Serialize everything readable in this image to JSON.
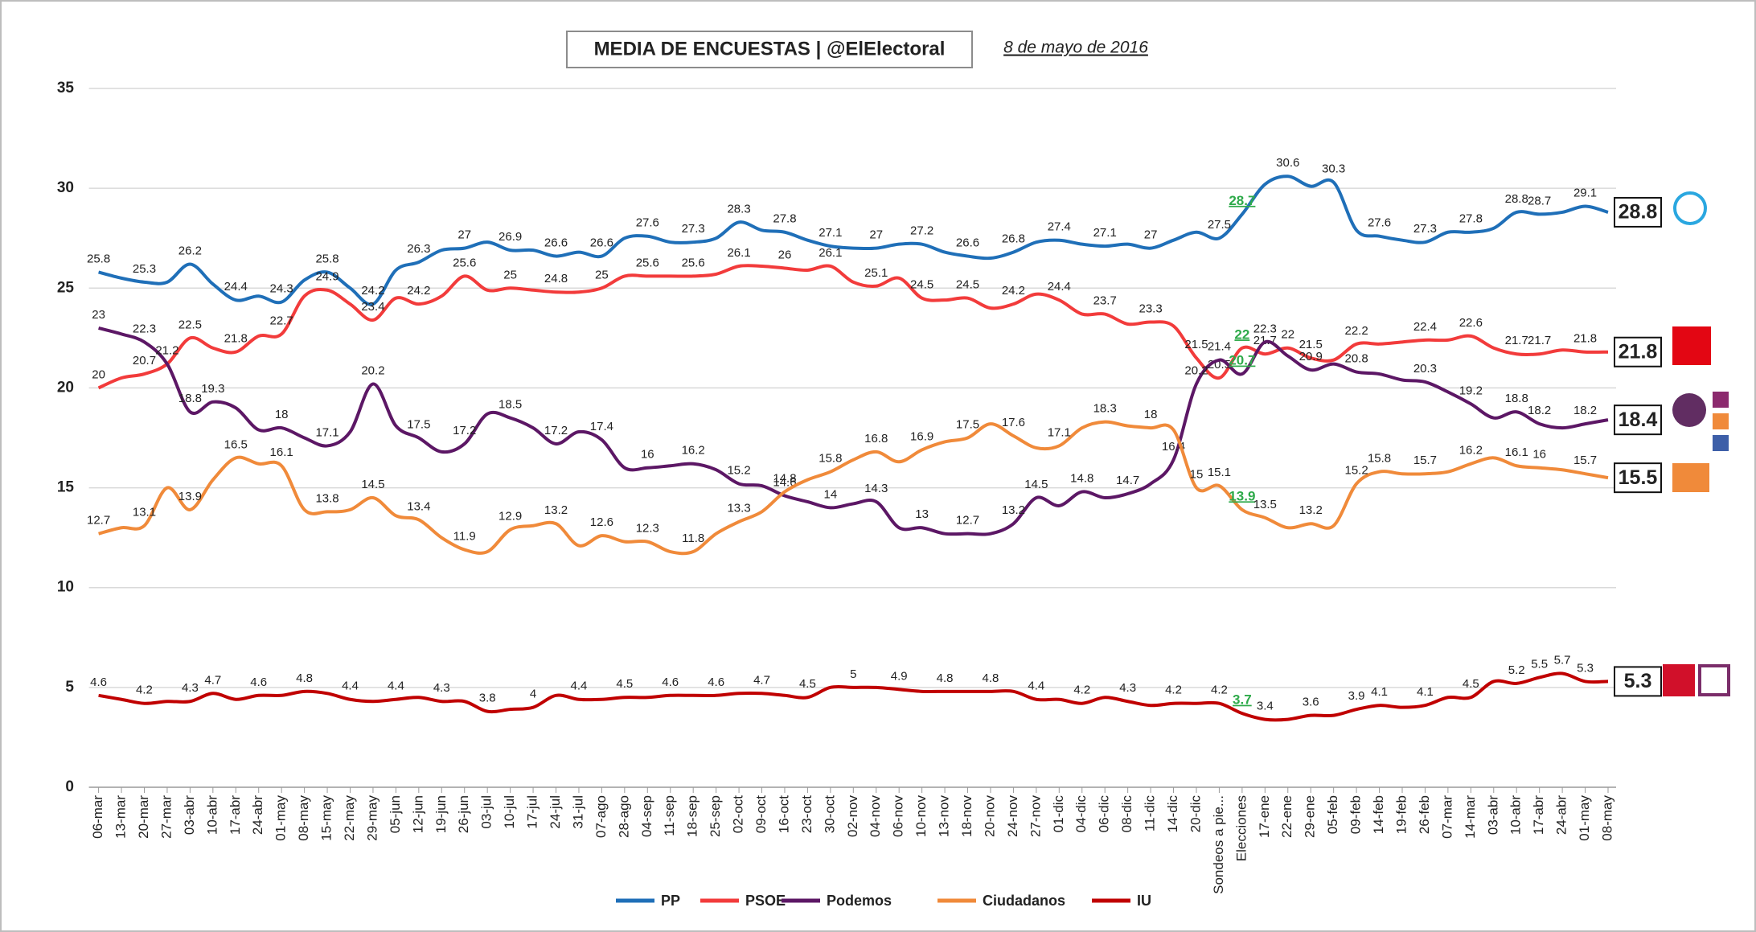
{
  "chart_data": {
    "type": "line",
    "title": "MEDIA DE ENCUESTAS | @ElElectoral",
    "subtitle": "8 de mayo de 2016",
    "highlight_category": "Elecciones",
    "grid": true,
    "ylim": [
      0,
      35
    ],
    "yticks": [
      0,
      5,
      10,
      15,
      20,
      25,
      30,
      35
    ],
    "categories": [
      "06-mar",
      "13-mar",
      "20-mar",
      "27-mar",
      "03-abr",
      "10-abr",
      "17-abr",
      "24-abr",
      "01-may",
      "08-may",
      "15-may",
      "22-may",
      "29-may",
      "05-jun",
      "12-jun",
      "19-jun",
      "26-jun",
      "03-jul",
      "10-jul",
      "17-jul",
      "24-jul",
      "31-jul",
      "07-ago",
      "28-ago",
      "04-sep",
      "11-sep",
      "18-sep",
      "25-sep",
      "02-oct",
      "09-oct",
      "16-oct",
      "23-oct",
      "30-oct",
      "02-nov",
      "04-nov",
      "06-nov",
      "10-nov",
      "13-nov",
      "18-nov",
      "20-nov",
      "24-nov",
      "27-nov",
      "01-dic",
      "04-dic",
      "06-dic",
      "08-dic",
      "11-dic",
      "14-dic",
      "20-dic",
      "Sondeos a pie...",
      "Elecciones",
      "17-ene",
      "22-ene",
      "29-ene",
      "05-feb",
      "09-feb",
      "14-feb",
      "19-feb",
      "26-feb",
      "07-mar",
      "14-mar",
      "03-abr",
      "10-abr",
      "17-abr",
      "24-abr",
      "01-may",
      "08-may"
    ],
    "series": [
      {
        "name": "PP",
        "color": "#1f6fb8",
        "values": [
          25.8,
          25.5,
          25.3,
          25.3,
          26.2,
          25.2,
          24.4,
          24.6,
          24.3,
          25.4,
          25.8,
          25.0,
          24.2,
          25.9,
          26.3,
          26.9,
          27,
          27.3,
          26.9,
          26.9,
          26.6,
          26.8,
          26.6,
          27.5,
          27.6,
          27.3,
          27.3,
          27.5,
          28.3,
          27.9,
          27.8,
          27.4,
          27.1,
          27.0,
          27,
          27.2,
          27.2,
          26.8,
          26.6,
          26.5,
          26.8,
          27.3,
          27.4,
          27.2,
          27.1,
          27.2,
          27,
          27.4,
          27.8,
          27.5,
          28.7,
          30.2,
          30.6,
          30.1,
          30.3,
          27.9,
          27.6,
          27.4,
          27.3,
          27.8,
          27.8,
          28.0,
          28.8,
          28.7,
          28.8,
          29.1,
          28.8
        ],
        "value_labels": [
          "25.8",
          null,
          "25.3",
          null,
          "26.2",
          null,
          "24.4",
          null,
          "24.3",
          null,
          "25.8",
          null,
          "24.2",
          null,
          "26.3",
          null,
          "27",
          null,
          "26.9",
          null,
          "26.6",
          null,
          "26.6",
          null,
          "27.6",
          null,
          "27.3",
          null,
          "28.3",
          null,
          "27.8",
          null,
          "27.1",
          null,
          "27",
          null,
          "27.2",
          null,
          "26.6",
          null,
          "26.8",
          null,
          "27.4",
          null,
          "27.1",
          null,
          "27",
          null,
          null,
          "27.5",
          "28.7",
          null,
          "30.6",
          null,
          "30.3",
          null,
          "27.6",
          null,
          "27.3",
          null,
          "27.8",
          null,
          "28.8",
          "28.7",
          null,
          "29.1",
          null
        ]
      },
      {
        "name": "PSOE",
        "color": "#f23b3b",
        "values": [
          20,
          20.5,
          20.7,
          21.2,
          22.5,
          22.0,
          21.8,
          22.6,
          22.7,
          24.6,
          24.9,
          24.2,
          23.4,
          24.5,
          24.2,
          24.6,
          25.6,
          24.9,
          25,
          24.9,
          24.8,
          24.8,
          25,
          25.6,
          25.6,
          25.6,
          25.6,
          25.7,
          26.1,
          26.1,
          26,
          25.9,
          26.1,
          25.3,
          25.1,
          25.5,
          24.5,
          24.4,
          24.5,
          24.0,
          24.2,
          24.7,
          24.4,
          23.7,
          23.7,
          23.2,
          23.3,
          23.1,
          21.5,
          20.5,
          22,
          21.7,
          22,
          21.5,
          21.4,
          22.2,
          22.2,
          22.3,
          22.4,
          22.4,
          22.6,
          22.0,
          21.7,
          21.7,
          21.9,
          21.8,
          21.8
        ],
        "value_labels": [
          "20",
          null,
          "20.7",
          null,
          "22.5",
          null,
          "21.8",
          null,
          "22.7",
          null,
          "24.9",
          null,
          "23.4",
          null,
          "24.2",
          null,
          "25.6",
          null,
          "25",
          null,
          "24.8",
          null,
          "25",
          null,
          "25.6",
          null,
          "25.6",
          null,
          "26.1",
          null,
          "26",
          null,
          "26.1",
          null,
          "25.1",
          null,
          "24.5",
          null,
          "24.5",
          null,
          "24.2",
          null,
          "24.4",
          null,
          "23.7",
          null,
          "23.3",
          null,
          "21.5",
          "20.5",
          "22",
          "21.7",
          "22",
          "21.5",
          null,
          "22.2",
          null,
          null,
          "22.4",
          null,
          "22.6",
          null,
          "21.7",
          "21.7",
          null,
          "21.8",
          null
        ]
      },
      {
        "name": "Podemos",
        "color": "#5c1765",
        "values": [
          23,
          22.7,
          22.3,
          21.2,
          18.8,
          19.3,
          19.0,
          17.9,
          18,
          17.5,
          17.1,
          17.8,
          20.2,
          18.1,
          17.5,
          16.8,
          17.2,
          18.7,
          18.5,
          18.0,
          17.2,
          17.8,
          17.4,
          16.0,
          16,
          16.1,
          16.2,
          15.9,
          15.2,
          15.1,
          14.6,
          14.3,
          14,
          14.2,
          14.3,
          13.0,
          13,
          12.7,
          12.7,
          12.7,
          13.2,
          14.5,
          14.1,
          14.8,
          14.5,
          14.7,
          15.2,
          16.4,
          20.2,
          21.4,
          20.7,
          22.3,
          21.6,
          20.9,
          21.2,
          20.8,
          20.7,
          20.4,
          20.3,
          19.8,
          19.2,
          18.5,
          18.8,
          18.2,
          18.0,
          18.2,
          18.4
        ],
        "value_labels": [
          "23",
          null,
          "22.3",
          "21.2",
          "18.8",
          "19.3",
          null,
          null,
          "18",
          null,
          "17.1",
          null,
          "20.2",
          null,
          "17.5",
          null,
          "17.2",
          null,
          "18.5",
          null,
          "17.2",
          null,
          "17.4",
          null,
          "16",
          null,
          "16.2",
          null,
          "15.2",
          null,
          "14.6",
          null,
          "14",
          null,
          "14.3",
          null,
          "13",
          null,
          "12.7",
          null,
          "13.2",
          "14.5",
          null,
          "14.8",
          null,
          "14.7",
          null,
          "16.4",
          "20.2",
          "21.4",
          "20.7",
          "22.3",
          null,
          "20.9",
          null,
          "20.8",
          null,
          null,
          "20.3",
          null,
          "19.2",
          null,
          "18.8",
          "18.2",
          null,
          "18.2",
          null
        ]
      },
      {
        "name": "Ciudadanos",
        "color": "#f08a3a",
        "values": [
          12.7,
          13.0,
          13.1,
          15.0,
          13.9,
          15.4,
          16.5,
          16.2,
          16.1,
          13.9,
          13.8,
          13.9,
          14.5,
          13.6,
          13.4,
          12.5,
          11.9,
          11.8,
          12.9,
          13.1,
          13.2,
          12.1,
          12.6,
          12.3,
          12.3,
          11.8,
          11.8,
          12.7,
          13.3,
          13.8,
          14.8,
          15.4,
          15.8,
          16.4,
          16.8,
          16.3,
          16.9,
          17.3,
          17.5,
          18.2,
          17.6,
          17.0,
          17.1,
          18.0,
          18.3,
          18.1,
          18,
          17.9,
          15,
          15.1,
          13.9,
          13.5,
          13.0,
          13.2,
          13.1,
          15.2,
          15.8,
          15.7,
          15.7,
          15.8,
          16.2,
          16.5,
          16.1,
          16,
          15.9,
          15.7,
          15.5
        ],
        "value_labels": [
          "12.7",
          null,
          "13.1",
          null,
          "13.9",
          null,
          "16.5",
          null,
          "16.1",
          null,
          "13.8",
          null,
          "14.5",
          null,
          "13.4",
          null,
          "11.9",
          null,
          "12.9",
          null,
          "13.2",
          null,
          "12.6",
          null,
          "12.3",
          null,
          "11.8",
          null,
          "13.3",
          null,
          "14.8",
          null,
          "15.8",
          null,
          "16.8",
          null,
          "16.9",
          null,
          "17.5",
          null,
          "17.6",
          null,
          "17.1",
          null,
          "18.3",
          null,
          "18",
          null,
          "15",
          "15.1",
          "13.9",
          "13.5",
          null,
          "13.2",
          null,
          "15.2",
          "15.8",
          null,
          "15.7",
          null,
          "16.2",
          null,
          "16.1",
          "16",
          null,
          "15.7",
          null
        ]
      },
      {
        "name": "IU",
        "color": "#c00000",
        "values": [
          4.6,
          4.4,
          4.2,
          4.3,
          4.3,
          4.7,
          4.4,
          4.6,
          4.6,
          4.8,
          4.7,
          4.4,
          4.3,
          4.4,
          4.5,
          4.3,
          4.3,
          3.8,
          3.9,
          4,
          4.6,
          4.4,
          4.4,
          4.5,
          4.5,
          4.6,
          4.6,
          4.6,
          4.7,
          4.7,
          4.6,
          4.5,
          5.0,
          5,
          5.0,
          4.9,
          4.8,
          4.8,
          4.8,
          4.8,
          4.8,
          4.4,
          4.4,
          4.2,
          4.5,
          4.3,
          4.1,
          4.2,
          4.2,
          4.2,
          3.7,
          3.4,
          3.4,
          3.6,
          3.6,
          3.9,
          4.1,
          4.0,
          4.1,
          4.5,
          4.5,
          5.3,
          5.2,
          5.5,
          5.7,
          5.3,
          5.3
        ],
        "value_labels": [
          "4.6",
          null,
          "4.2",
          null,
          "4.3",
          "4.7",
          null,
          "4.6",
          null,
          "4.8",
          null,
          "4.4",
          null,
          "4.4",
          null,
          "4.3",
          null,
          "3.8",
          null,
          "4",
          null,
          "4.4",
          null,
          "4.5",
          null,
          "4.6",
          null,
          "4.6",
          null,
          "4.7",
          null,
          "4.5",
          null,
          "5",
          null,
          "4.9",
          null,
          "4.8",
          null,
          "4.8",
          null,
          "4.4",
          null,
          "4.2",
          null,
          "4.3",
          null,
          "4.2",
          null,
          "4.2",
          "3.7",
          "3.4",
          null,
          "3.6",
          null,
          "3.9",
          "4.1",
          null,
          "4.1",
          null,
          "4.5",
          null,
          "5.2",
          "5.5",
          "5.7",
          "5.3",
          null
        ]
      }
    ]
  }
}
